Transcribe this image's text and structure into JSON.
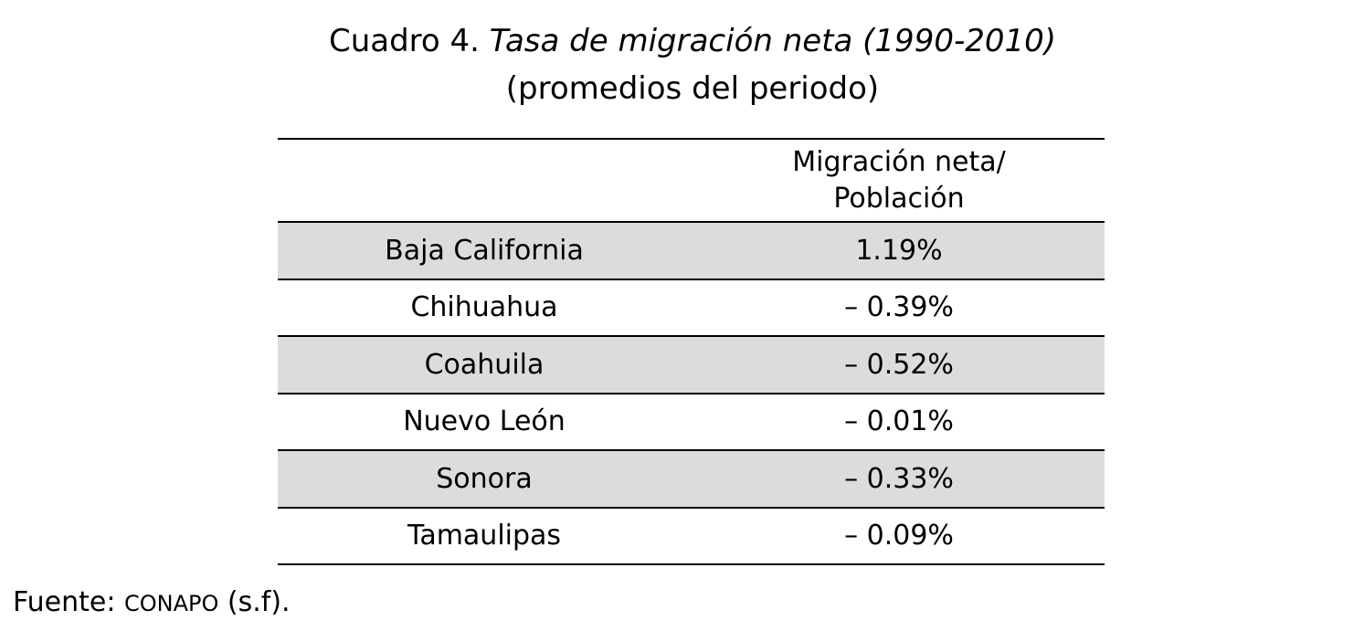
{
  "title": {
    "prefix": "Cuadro 4.",
    "italic": "Tasa de migración neta (1990-2010)",
    "subtitle": "(promedios del periodo)"
  },
  "table": {
    "header_state": "",
    "header_value_line1": "Migración neta/",
    "header_value_line2": "Población",
    "rows": [
      {
        "state": "Baja California",
        "value": "1.19%"
      },
      {
        "state": "Chihuahua",
        "value": "– 0.39%"
      },
      {
        "state": "Coahuila",
        "value": "– 0.52%"
      },
      {
        "state": "Nuevo León",
        "value": "– 0.01%"
      },
      {
        "state": "Sonora",
        "value": "– 0.33%"
      },
      {
        "state": "Tamaulipas",
        "value": "– 0.09%"
      }
    ]
  },
  "source": {
    "label": "Fuente:",
    "org": "CONAPO",
    "suffix": "(s.f)."
  }
}
